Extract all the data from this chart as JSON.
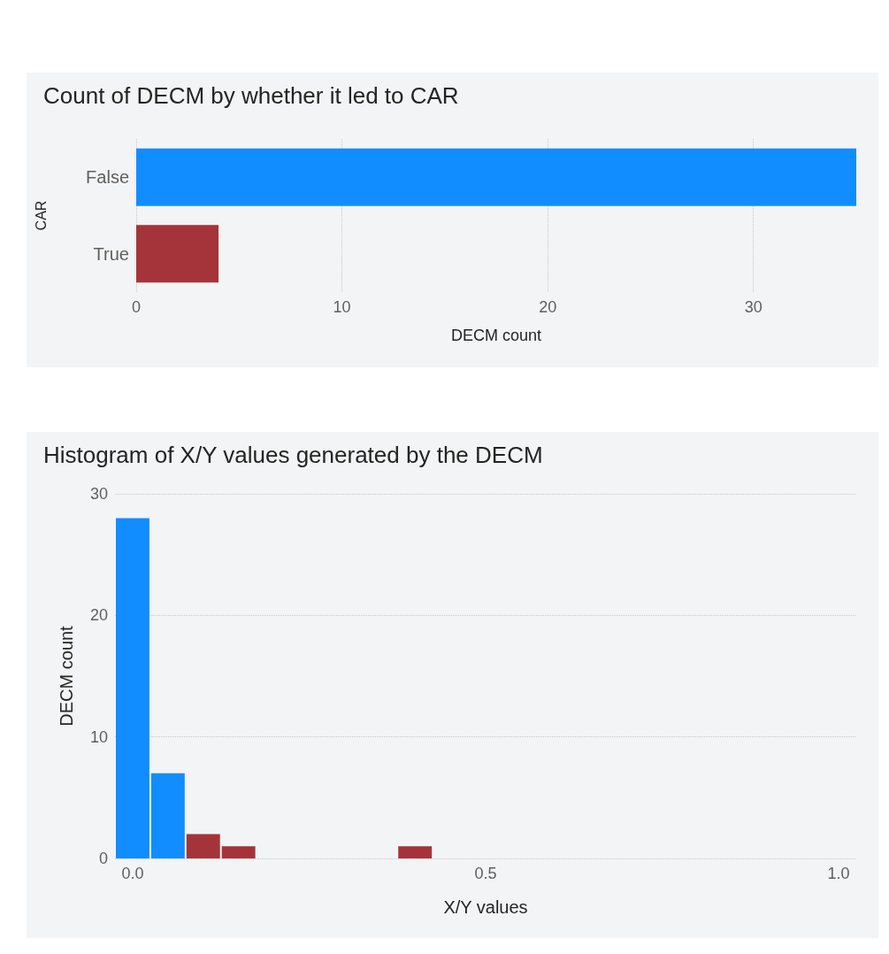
{
  "chart_data": [
    {
      "type": "bar",
      "title": "Count of DECM by whether it led to CAR",
      "orientation": "horizontal",
      "categories": [
        "False",
        "True"
      ],
      "values": [
        35,
        4
      ],
      "colors": [
        "#118dff",
        "#a4343a"
      ],
      "xlim": [
        0,
        35
      ],
      "xticks": [
        0,
        10,
        20,
        30
      ],
      "xlabel": "DECM count",
      "ylabel": "CAR",
      "grid": "x"
    },
    {
      "type": "histogram",
      "title": "Histogram of X/Y values generated by the DECM",
      "bins": [
        -0.025,
        0.025,
        0.075,
        0.125,
        0.175,
        0.225,
        0.275,
        0.325,
        0.375,
        0.425
      ],
      "values": [
        28,
        7,
        2,
        1,
        0,
        0,
        0,
        0,
        1
      ],
      "colors": [
        "#118dff",
        "#118dff",
        "#a4343a",
        "#a4343a",
        "#a4343a",
        "#a4343a",
        "#a4343a",
        "#a4343a",
        "#a4343a"
      ],
      "xlim": [
        -0.025,
        1.025
      ],
      "xticks": [
        {
          "value": 0,
          "label": "0.0"
        },
        {
          "value": 0.5,
          "label": "0.5"
        },
        {
          "value": 1,
          "label": "1.0"
        }
      ],
      "ylim": [
        0,
        30
      ],
      "yticks": [
        0,
        10,
        20,
        30
      ],
      "xlabel": "X/Y values",
      "ylabel": "DECM count",
      "grid": "y"
    }
  ]
}
